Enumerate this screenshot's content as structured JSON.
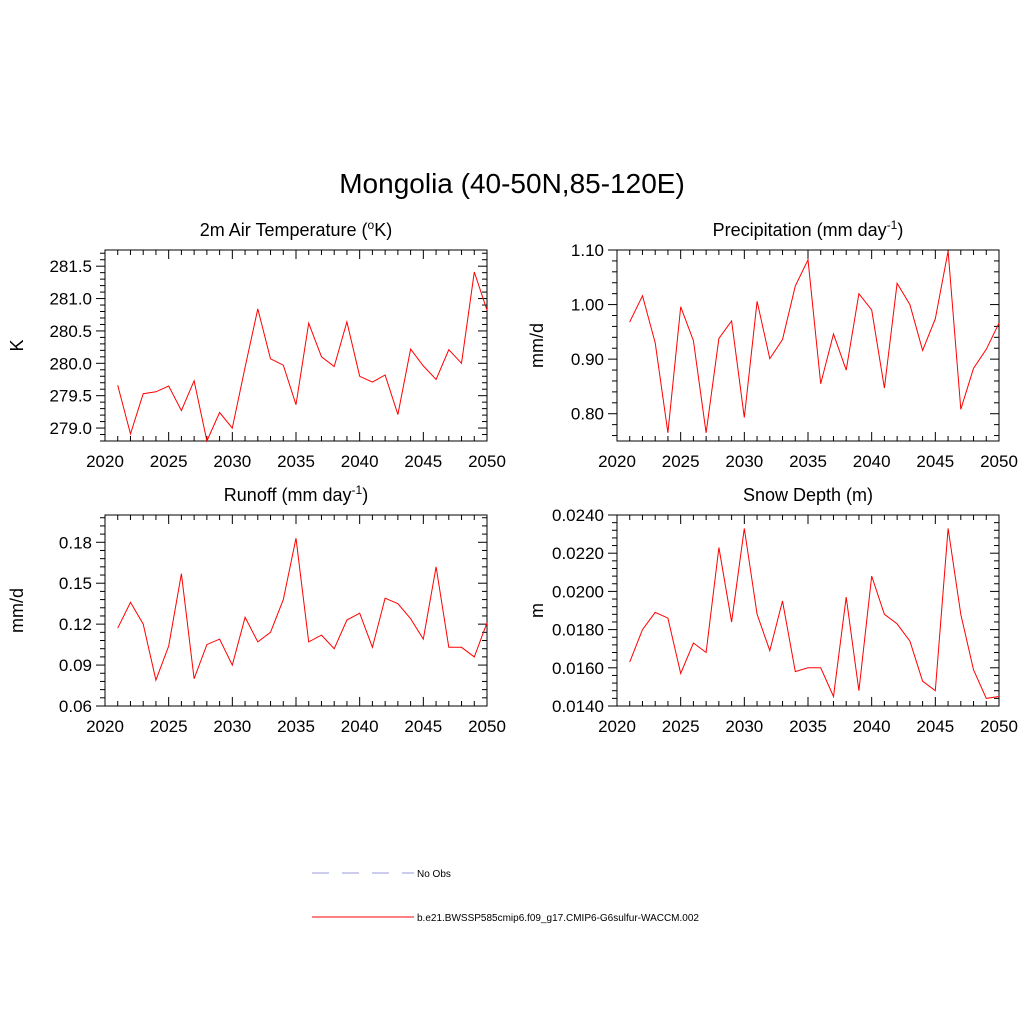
{
  "title": "Mongolia (40-50N,85-120E)",
  "colors": {
    "model_line": "#ff0000",
    "obs_line": "#9999dd",
    "axis": "#000000"
  },
  "legend": [
    {
      "label": "No Obs",
      "style": "dashed",
      "color": "#9999dd"
    },
    {
      "label": "b.e21.BWSSP585cmip6.f09_g17.CMIP6-G6sulfur-WACCM.002",
      "style": "solid",
      "color": "#ff0000"
    }
  ],
  "chart_data": [
    {
      "type": "line",
      "title": "2m Air Temperature (",
      "title_sup": "o",
      "title_tail": "K)",
      "ylabel": "K",
      "xlim": [
        2020,
        2050
      ],
      "ylim": [
        278.8,
        281.75
      ],
      "xticks": [
        2020,
        2025,
        2030,
        2035,
        2040,
        2045,
        2050
      ],
      "yticks": [
        279.0,
        279.5,
        280.0,
        280.5,
        281.0,
        281.5
      ],
      "yticklabels": [
        "279.0",
        "279.5",
        "280.0",
        "280.5",
        "281.0",
        "281.5"
      ],
      "series": [
        {
          "name": "b.e21.BWSSP585cmip6.f09_g17.CMIP6-G6sulfur-WACCM.002",
          "x": [
            2021,
            2022,
            2023,
            2024,
            2025,
            2026,
            2027,
            2028,
            2029,
            2030,
            2031,
            2032,
            2033,
            2034,
            2035,
            2036,
            2037,
            2038,
            2039,
            2040,
            2041,
            2042,
            2043,
            2044,
            2045,
            2046,
            2047,
            2048,
            2049,
            2050
          ],
          "y": [
            279.66,
            278.91,
            279.53,
            279.56,
            279.65,
            279.27,
            279.73,
            278.8,
            279.24,
            279.0,
            279.94,
            280.84,
            280.07,
            279.97,
            279.36,
            280.62,
            280.1,
            279.95,
            280.64,
            279.8,
            279.71,
            279.82,
            279.21,
            280.22,
            279.96,
            279.75,
            280.21,
            280.0,
            281.41,
            280.82
          ]
        }
      ]
    },
    {
      "type": "line",
      "title": "Precipitation (mm day",
      "title_sup": "-1",
      "title_tail": ")",
      "ylabel": "mm/d",
      "xlim": [
        2020,
        2050
      ],
      "ylim": [
        0.75,
        1.1
      ],
      "xticks": [
        2020,
        2025,
        2030,
        2035,
        2040,
        2045,
        2050
      ],
      "yticks": [
        0.8,
        0.9,
        1.0,
        1.1
      ],
      "yticklabels": [
        "0.80",
        "0.90",
        "1.00",
        "1.10"
      ],
      "series": [
        {
          "name": "b.e21.BWSSP585cmip6.f09_g17.CMIP6-G6sulfur-WACCM.002",
          "x": [
            2021,
            2022,
            2023,
            2024,
            2025,
            2026,
            2027,
            2028,
            2029,
            2030,
            2031,
            2032,
            2033,
            2034,
            2035,
            2036,
            2037,
            2038,
            2039,
            2040,
            2041,
            2042,
            2043,
            2044,
            2045,
            2046,
            2047,
            2048,
            2049,
            2050
          ],
          "y": [
            0.968,
            1.016,
            0.93,
            0.765,
            0.996,
            0.934,
            0.765,
            0.938,
            0.97,
            0.793,
            1.006,
            0.901,
            0.936,
            1.034,
            1.082,
            0.855,
            0.946,
            0.88,
            1.02,
            0.99,
            0.847,
            1.039,
            1.0,
            0.916,
            0.974,
            1.098,
            0.808,
            0.883,
            0.918,
            0.966
          ]
        }
      ]
    },
    {
      "type": "line",
      "title": "Runoff (mm day",
      "title_sup": "-1",
      "title_tail": ")",
      "ylabel": "mm/d",
      "xlim": [
        2020,
        2050
      ],
      "ylim": [
        0.06,
        0.2
      ],
      "xticks": [
        2020,
        2025,
        2030,
        2035,
        2040,
        2045,
        2050
      ],
      "yticks": [
        0.06,
        0.09,
        0.12,
        0.15,
        0.18
      ],
      "yticklabels": [
        "0.06",
        "0.09",
        "0.12",
        "0.15",
        "0.18"
      ],
      "series": [
        {
          "name": "b.e21.BWSSP585cmip6.f09_g17.CMIP6-G6sulfur-WACCM.002",
          "x": [
            2021,
            2022,
            2023,
            2024,
            2025,
            2026,
            2027,
            2028,
            2029,
            2030,
            2031,
            2032,
            2033,
            2034,
            2035,
            2036,
            2037,
            2038,
            2039,
            2040,
            2041,
            2042,
            2043,
            2044,
            2045,
            2046,
            2047,
            2048,
            2049,
            2050
          ],
          "y": [
            0.117,
            0.136,
            0.12,
            0.079,
            0.104,
            0.157,
            0.08,
            0.105,
            0.109,
            0.09,
            0.125,
            0.107,
            0.114,
            0.138,
            0.183,
            0.107,
            0.112,
            0.102,
            0.123,
            0.128,
            0.103,
            0.139,
            0.135,
            0.124,
            0.109,
            0.162,
            0.103,
            0.103,
            0.096,
            0.121
          ]
        }
      ]
    },
    {
      "type": "line",
      "title": "Snow Depth (m)",
      "title_sup": "",
      "title_tail": "",
      "ylabel": "m",
      "xlim": [
        2020,
        2050
      ],
      "ylim": [
        0.014,
        0.024
      ],
      "xticks": [
        2020,
        2025,
        2030,
        2035,
        2040,
        2045,
        2050
      ],
      "yticks": [
        0.014,
        0.016,
        0.018,
        0.02,
        0.022,
        0.024
      ],
      "yticklabels": [
        "0.0140",
        "0.0160",
        "0.0180",
        "0.0200",
        "0.0220",
        "0.0240"
      ],
      "series": [
        {
          "name": "b.e21.BWSSP585cmip6.f09_g17.CMIP6-G6sulfur-WACCM.002",
          "x": [
            2021,
            2022,
            2023,
            2024,
            2025,
            2026,
            2027,
            2028,
            2029,
            2030,
            2031,
            2032,
            2033,
            2034,
            2035,
            2036,
            2037,
            2038,
            2039,
            2040,
            2041,
            2042,
            2043,
            2044,
            2045,
            2046,
            2047,
            2048,
            2049,
            2050
          ],
          "y": [
            0.0163,
            0.018,
            0.0189,
            0.0186,
            0.0157,
            0.0173,
            0.0168,
            0.0223,
            0.0184,
            0.0233,
            0.0188,
            0.0169,
            0.0195,
            0.0158,
            0.016,
            0.016,
            0.0145,
            0.0197,
            0.0148,
            0.0208,
            0.0188,
            0.0183,
            0.0174,
            0.0153,
            0.0148,
            0.0233,
            0.0188,
            0.0159,
            0.0144,
            0.0145
          ]
        }
      ]
    }
  ]
}
